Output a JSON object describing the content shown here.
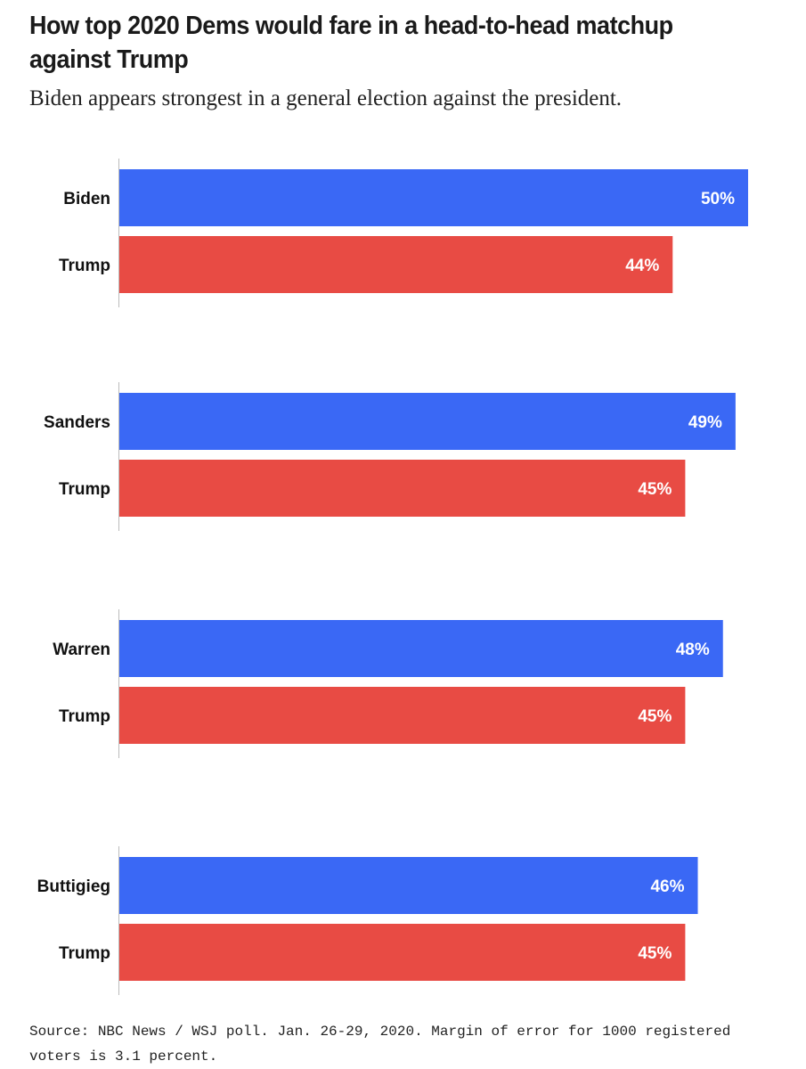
{
  "chart_data": {
    "type": "bar",
    "orientation": "horizontal",
    "title": "How top 2020 Dems would fare in a head-to-head matchup against Trump",
    "subtitle": "Biden appears strongest in a general election against the president.",
    "groups": [
      {
        "bars": [
          {
            "label": "Biden",
            "value": 50,
            "value_label": "50%",
            "party": "dem"
          },
          {
            "label": "Trump",
            "value": 44,
            "value_label": "44%",
            "party": "rep"
          }
        ]
      },
      {
        "bars": [
          {
            "label": "Sanders",
            "value": 49,
            "value_label": "49%",
            "party": "dem"
          },
          {
            "label": "Trump",
            "value": 45,
            "value_label": "45%",
            "party": "rep"
          }
        ]
      },
      {
        "bars": [
          {
            "label": "Warren",
            "value": 48,
            "value_label": "48%",
            "party": "dem"
          },
          {
            "label": "Trump",
            "value": 45,
            "value_label": "45%",
            "party": "rep"
          }
        ]
      },
      {
        "bars": [
          {
            "label": "Buttigieg",
            "value": 46,
            "value_label": "46%",
            "party": "dem"
          },
          {
            "label": "Trump",
            "value": 45,
            "value_label": "45%",
            "party": "rep"
          }
        ]
      }
    ],
    "xlim": [
      0,
      50
    ],
    "colors": {
      "dem": "#3a68f5",
      "rep": "#e84b44",
      "axis": "#bbbbbb"
    },
    "grid": false,
    "legend": "none"
  },
  "source": "Source: NBC News / WSJ poll. Jan. 26-29, 2020. Margin of error for 1000 registered voters is 3.1 percent."
}
